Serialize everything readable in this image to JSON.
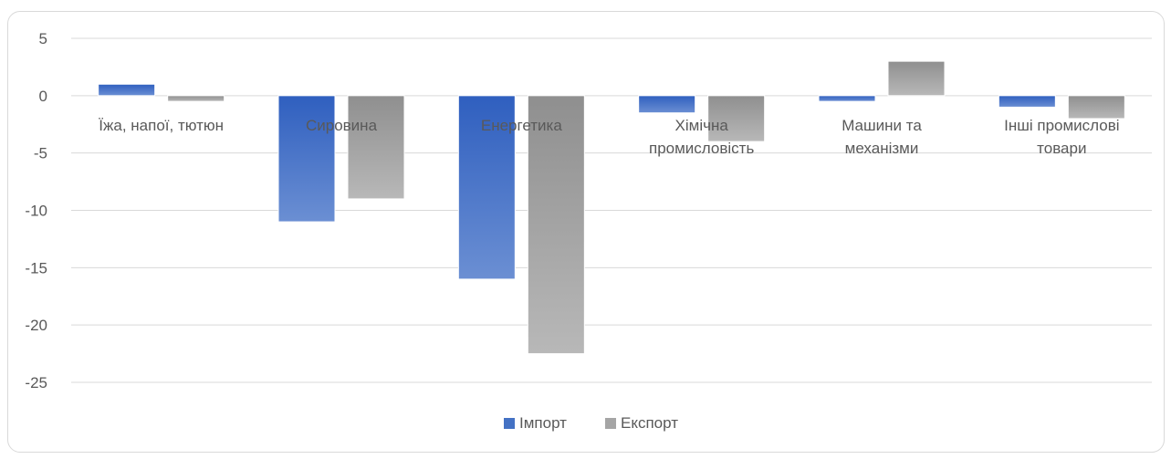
{
  "chart_data": {
    "type": "bar",
    "categories": [
      [
        "Їжа, напої, тютюн"
      ],
      [
        "Сировина"
      ],
      [
        "Енергетика"
      ],
      [
        "Хімічна",
        "промисловість"
      ],
      [
        "Машини та",
        "механізми"
      ],
      [
        "Інші промислові",
        "товари"
      ]
    ],
    "series": [
      {
        "name": "Імпорт",
        "color": "#4472c4",
        "values": [
          1.0,
          -11.0,
          -16.0,
          -1.5,
          -0.5,
          -1.0
        ]
      },
      {
        "name": "Експорт",
        "color": "#a5a5a5",
        "values": [
          -0.5,
          -9.0,
          -22.5,
          -4.0,
          3.0,
          -2.0
        ]
      }
    ],
    "ylim": [
      -25,
      5
    ],
    "yticks": [
      5,
      0,
      -5,
      -10,
      -15,
      -20,
      -25
    ],
    "grid": true,
    "legend": "bottom"
  }
}
